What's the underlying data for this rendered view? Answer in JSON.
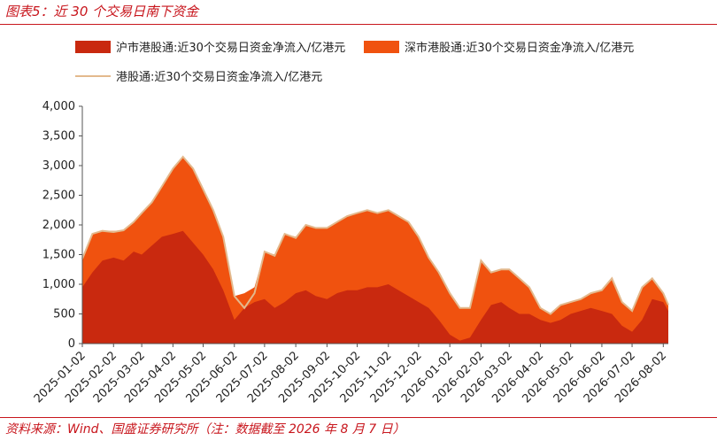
{
  "header": {
    "title": "图表5：近 30 个交易日南下资金"
  },
  "footer": {
    "source": "资料来源：Wind、国盛证券研究所（注：数据截至 2026 年 8 月 7 日）"
  },
  "colors": {
    "sh": "#c9290f",
    "sz": "#f0520f",
    "total": "#e3b98d",
    "accent": "#c8161d"
  },
  "chart_data": {
    "type": "area",
    "legend": [
      {
        "key": "sh",
        "label": "沪市港股通:近30个交易日资金净流入/亿港元",
        "style": "area"
      },
      {
        "key": "sz",
        "label": "深市港股通:近30个交易日资金净流入/亿港元",
        "style": "area"
      },
      {
        "key": "total",
        "label": "港股通:近30个交易日资金净流入/亿港元",
        "style": "line"
      }
    ],
    "yticks": [
      "0",
      "500",
      "1,000",
      "1,500",
      "2,000",
      "2,500",
      "3,000",
      "3,500",
      "4,000"
    ],
    "ylim": [
      0,
      4000
    ],
    "xticks": [
      "2025-01-02",
      "2025-02-02",
      "2025-03-02",
      "2025-04-02",
      "2025-05-02",
      "2025-06-02",
      "2025-07-02",
      "2025-08-02",
      "2025-09-02",
      "2025-10-02",
      "2025-11-02",
      "2025-12-02",
      "2026-01-02",
      "2026-02-02",
      "2026-03-02",
      "2026-04-02",
      "2026-05-02",
      "2026-06-02",
      "2026-07-02",
      "2026-08-02"
    ],
    "x": [
      "2025-01-02",
      "2025-01-12",
      "2025-01-22",
      "2025-02-02",
      "2025-02-12",
      "2025-02-22",
      "2025-03-02",
      "2025-03-12",
      "2025-03-22",
      "2025-04-02",
      "2025-04-12",
      "2025-04-22",
      "2025-05-02",
      "2025-05-12",
      "2025-05-22",
      "2025-06-02",
      "2025-06-12",
      "2025-06-22",
      "2025-07-02",
      "2025-07-12",
      "2025-07-22",
      "2025-08-02",
      "2025-08-12",
      "2025-08-22",
      "2025-09-02",
      "2025-09-12",
      "2025-09-22",
      "2025-10-02",
      "2025-10-12",
      "2025-10-22",
      "2025-11-02",
      "2025-11-12",
      "2025-11-22",
      "2025-12-02",
      "2025-12-12",
      "2025-12-22",
      "2026-01-02",
      "2026-01-12",
      "2026-01-22",
      "2026-02-02",
      "2026-02-12",
      "2026-02-22",
      "2026-03-02",
      "2026-03-12",
      "2026-03-22",
      "2026-04-02",
      "2026-04-12",
      "2026-04-22",
      "2026-05-02",
      "2026-05-12",
      "2026-05-22",
      "2026-06-02",
      "2026-06-12",
      "2026-06-22",
      "2026-07-02",
      "2026-07-12",
      "2026-07-22",
      "2026-08-02",
      "2026-08-07"
    ],
    "series": [
      {
        "name": "沪市港股通:近30个交易日资金净流入/亿港元",
        "key": "sh",
        "values": [
          950,
          1200,
          1400,
          1450,
          1400,
          1550,
          1500,
          1650,
          1800,
          1850,
          1900,
          1700,
          1500,
          1250,
          900,
          400,
          600,
          700,
          750,
          600,
          700,
          850,
          900,
          800,
          750,
          850,
          900,
          900,
          950,
          950,
          1000,
          900,
          800,
          700,
          600,
          400,
          150,
          50,
          100,
          400,
          650,
          700,
          600,
          500,
          500,
          400,
          350,
          400,
          500,
          550,
          600,
          550,
          500,
          300,
          200,
          400,
          750,
          700,
          550
        ]
      },
      {
        "name": "深市港股通:近30个交易日资金净流入/亿港元",
        "key": "sz",
        "values": [
          500,
          650,
          500,
          450,
          500,
          500,
          700,
          750,
          850,
          1100,
          1250,
          1250,
          1100,
          1000,
          900,
          400,
          250,
          250,
          800,
          900,
          1150,
          950,
          1100,
          1150,
          1200,
          1200,
          1250,
          1300,
          1300,
          1250,
          1250,
          1250,
          1250,
          1100,
          850,
          800,
          700,
          550,
          500,
          1000,
          550,
          550,
          650,
          600,
          450,
          200,
          150,
          250,
          200,
          200,
          250,
          350,
          600,
          400,
          350,
          550,
          350,
          150,
          100
        ]
      },
      {
        "name": "港股通:近30个交易日资金净流入/亿港元",
        "key": "total",
        "values": [
          1430,
          1850,
          1900,
          1880,
          1910,
          2050,
          2200,
          2380,
          2650,
          2950,
          3150,
          2950,
          2600,
          2250,
          1800,
          800,
          600,
          850,
          1550,
          1480,
          1850,
          1780,
          2000,
          1950,
          1950,
          2050,
          2150,
          2200,
          2250,
          2200,
          2250,
          2150,
          2050,
          1800,
          1450,
          1200,
          850,
          600,
          600,
          1400,
          1200,
          1250,
          1250,
          1100,
          950,
          600,
          500,
          650,
          700,
          750,
          850,
          900,
          1100,
          700,
          550,
          950,
          1100,
          850,
          650
        ]
      }
    ]
  }
}
